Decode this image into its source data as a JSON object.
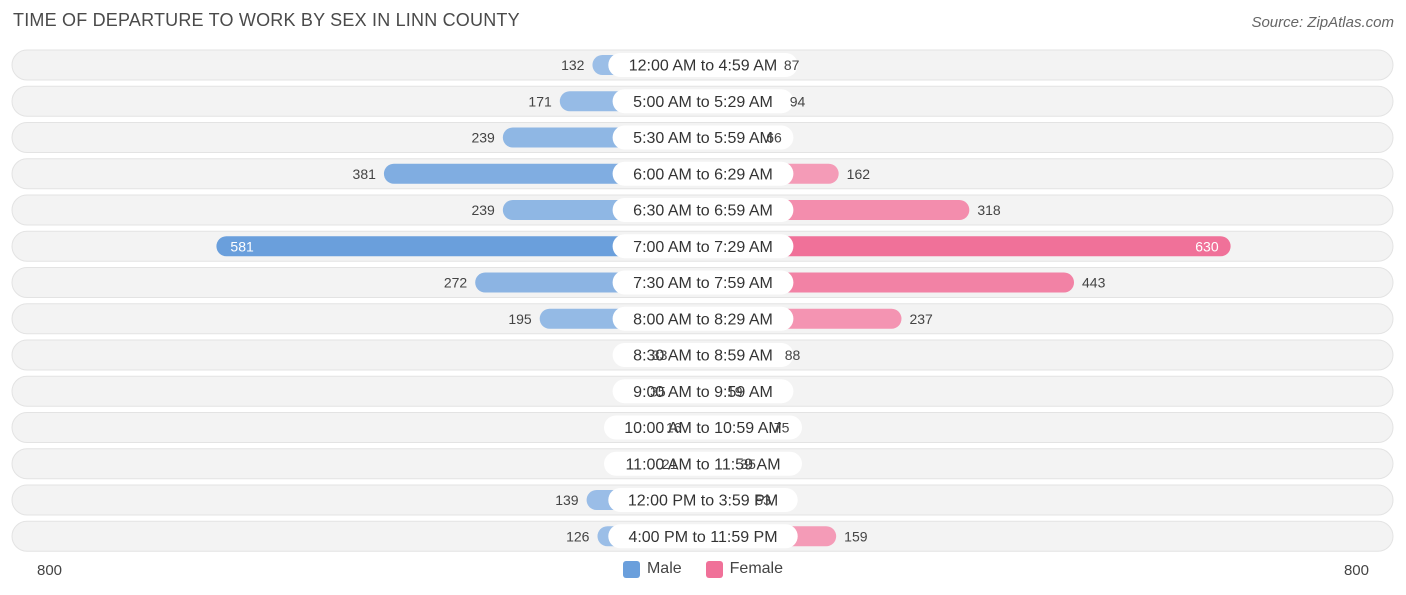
{
  "title": "TIME OF DEPARTURE TO WORK BY SEX IN LINN COUNTY",
  "source": "Source: ZipAtlas.com",
  "colors": {
    "male": "#6a9fdc",
    "female": "#f07199",
    "male_light": "#a9c7ea",
    "female_light": "#f6a9c1"
  },
  "legend": {
    "male_label": "Male",
    "female_label": "Female"
  },
  "axis": {
    "left_label": "800",
    "right_label": "800"
  },
  "chart_data": {
    "type": "bar",
    "orientation": "horizontal-diverging",
    "title": "TIME OF DEPARTURE TO WORK BY SEX IN LINN COUNTY",
    "xlim": [
      -800,
      800
    ],
    "categories": [
      "12:00 AM to 4:59 AM",
      "5:00 AM to 5:29 AM",
      "5:30 AM to 5:59 AM",
      "6:00 AM to 6:29 AM",
      "6:30 AM to 6:59 AM",
      "7:00 AM to 7:29 AM",
      "7:30 AM to 7:59 AM",
      "8:00 AM to 8:29 AM",
      "8:30 AM to 8:59 AM",
      "9:00 AM to 9:59 AM",
      "10:00 AM to 10:59 AM",
      "11:00 AM to 11:59 AM",
      "12:00 PM to 3:59 PM",
      "4:00 PM to 11:59 PM"
    ],
    "series": [
      {
        "name": "Male",
        "values": [
          132,
          171,
          239,
          381,
          239,
          581,
          272,
          195,
          33,
          35,
          16,
          21,
          139,
          126
        ]
      },
      {
        "name": "Female",
        "values": [
          87,
          94,
          66,
          162,
          318,
          630,
          443,
          237,
          88,
          19,
          75,
          35,
          53,
          159
        ]
      }
    ],
    "legend_position": "bottom-center"
  }
}
